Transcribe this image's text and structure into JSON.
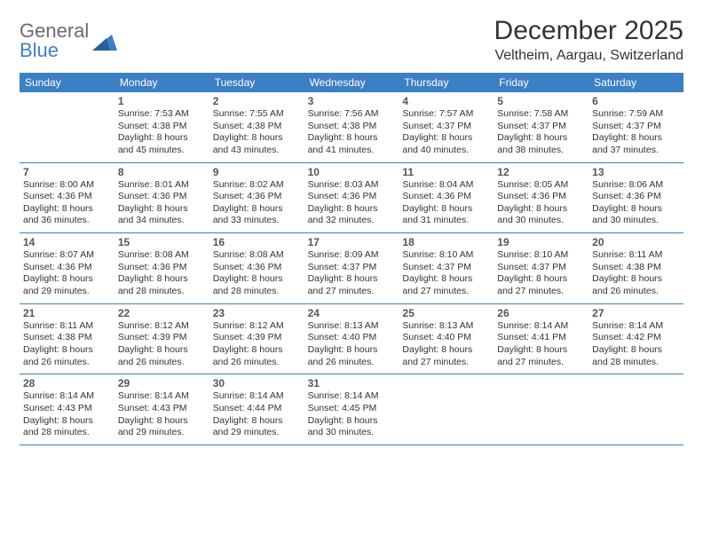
{
  "logo": {
    "word1": "General",
    "word2": "Blue"
  },
  "title": "December 2025",
  "location": "Veltheim, Aargau, Switzerland",
  "colors": {
    "brand_blue": "#3b7fc4",
    "header_text": "#ffffff",
    "body_text": "#333333",
    "logo_gray": "#6b6b6b",
    "background": "#ffffff"
  },
  "typography": {
    "title_fontsize": 30,
    "location_fontsize": 16,
    "dayheader_fontsize": 12,
    "daynum_fontsize": 12,
    "cell_fontsize": 10.5
  },
  "day_headers": [
    "Sunday",
    "Monday",
    "Tuesday",
    "Wednesday",
    "Thursday",
    "Friday",
    "Saturday"
  ],
  "weeks": [
    [
      {
        "n": "",
        "sunrise": "",
        "sunset": "",
        "daylight": ""
      },
      {
        "n": "1",
        "sunrise": "Sunrise: 7:53 AM",
        "sunset": "Sunset: 4:38 PM",
        "daylight": "Daylight: 8 hours and 45 minutes."
      },
      {
        "n": "2",
        "sunrise": "Sunrise: 7:55 AM",
        "sunset": "Sunset: 4:38 PM",
        "daylight": "Daylight: 8 hours and 43 minutes."
      },
      {
        "n": "3",
        "sunrise": "Sunrise: 7:56 AM",
        "sunset": "Sunset: 4:38 PM",
        "daylight": "Daylight: 8 hours and 41 minutes."
      },
      {
        "n": "4",
        "sunrise": "Sunrise: 7:57 AM",
        "sunset": "Sunset: 4:37 PM",
        "daylight": "Daylight: 8 hours and 40 minutes."
      },
      {
        "n": "5",
        "sunrise": "Sunrise: 7:58 AM",
        "sunset": "Sunset: 4:37 PM",
        "daylight": "Daylight: 8 hours and 38 minutes."
      },
      {
        "n": "6",
        "sunrise": "Sunrise: 7:59 AM",
        "sunset": "Sunset: 4:37 PM",
        "daylight": "Daylight: 8 hours and 37 minutes."
      }
    ],
    [
      {
        "n": "7",
        "sunrise": "Sunrise: 8:00 AM",
        "sunset": "Sunset: 4:36 PM",
        "daylight": "Daylight: 8 hours and 36 minutes."
      },
      {
        "n": "8",
        "sunrise": "Sunrise: 8:01 AM",
        "sunset": "Sunset: 4:36 PM",
        "daylight": "Daylight: 8 hours and 34 minutes."
      },
      {
        "n": "9",
        "sunrise": "Sunrise: 8:02 AM",
        "sunset": "Sunset: 4:36 PM",
        "daylight": "Daylight: 8 hours and 33 minutes."
      },
      {
        "n": "10",
        "sunrise": "Sunrise: 8:03 AM",
        "sunset": "Sunset: 4:36 PM",
        "daylight": "Daylight: 8 hours and 32 minutes."
      },
      {
        "n": "11",
        "sunrise": "Sunrise: 8:04 AM",
        "sunset": "Sunset: 4:36 PM",
        "daylight": "Daylight: 8 hours and 31 minutes."
      },
      {
        "n": "12",
        "sunrise": "Sunrise: 8:05 AM",
        "sunset": "Sunset: 4:36 PM",
        "daylight": "Daylight: 8 hours and 30 minutes."
      },
      {
        "n": "13",
        "sunrise": "Sunrise: 8:06 AM",
        "sunset": "Sunset: 4:36 PM",
        "daylight": "Daylight: 8 hours and 30 minutes."
      }
    ],
    [
      {
        "n": "14",
        "sunrise": "Sunrise: 8:07 AM",
        "sunset": "Sunset: 4:36 PM",
        "daylight": "Daylight: 8 hours and 29 minutes."
      },
      {
        "n": "15",
        "sunrise": "Sunrise: 8:08 AM",
        "sunset": "Sunset: 4:36 PM",
        "daylight": "Daylight: 8 hours and 28 minutes."
      },
      {
        "n": "16",
        "sunrise": "Sunrise: 8:08 AM",
        "sunset": "Sunset: 4:36 PM",
        "daylight": "Daylight: 8 hours and 28 minutes."
      },
      {
        "n": "17",
        "sunrise": "Sunrise: 8:09 AM",
        "sunset": "Sunset: 4:37 PM",
        "daylight": "Daylight: 8 hours and 27 minutes."
      },
      {
        "n": "18",
        "sunrise": "Sunrise: 8:10 AM",
        "sunset": "Sunset: 4:37 PM",
        "daylight": "Daylight: 8 hours and 27 minutes."
      },
      {
        "n": "19",
        "sunrise": "Sunrise: 8:10 AM",
        "sunset": "Sunset: 4:37 PM",
        "daylight": "Daylight: 8 hours and 27 minutes."
      },
      {
        "n": "20",
        "sunrise": "Sunrise: 8:11 AM",
        "sunset": "Sunset: 4:38 PM",
        "daylight": "Daylight: 8 hours and 26 minutes."
      }
    ],
    [
      {
        "n": "21",
        "sunrise": "Sunrise: 8:11 AM",
        "sunset": "Sunset: 4:38 PM",
        "daylight": "Daylight: 8 hours and 26 minutes."
      },
      {
        "n": "22",
        "sunrise": "Sunrise: 8:12 AM",
        "sunset": "Sunset: 4:39 PM",
        "daylight": "Daylight: 8 hours and 26 minutes."
      },
      {
        "n": "23",
        "sunrise": "Sunrise: 8:12 AM",
        "sunset": "Sunset: 4:39 PM",
        "daylight": "Daylight: 8 hours and 26 minutes."
      },
      {
        "n": "24",
        "sunrise": "Sunrise: 8:13 AM",
        "sunset": "Sunset: 4:40 PM",
        "daylight": "Daylight: 8 hours and 26 minutes."
      },
      {
        "n": "25",
        "sunrise": "Sunrise: 8:13 AM",
        "sunset": "Sunset: 4:40 PM",
        "daylight": "Daylight: 8 hours and 27 minutes."
      },
      {
        "n": "26",
        "sunrise": "Sunrise: 8:14 AM",
        "sunset": "Sunset: 4:41 PM",
        "daylight": "Daylight: 8 hours and 27 minutes."
      },
      {
        "n": "27",
        "sunrise": "Sunrise: 8:14 AM",
        "sunset": "Sunset: 4:42 PM",
        "daylight": "Daylight: 8 hours and 28 minutes."
      }
    ],
    [
      {
        "n": "28",
        "sunrise": "Sunrise: 8:14 AM",
        "sunset": "Sunset: 4:43 PM",
        "daylight": "Daylight: 8 hours and 28 minutes."
      },
      {
        "n": "29",
        "sunrise": "Sunrise: 8:14 AM",
        "sunset": "Sunset: 4:43 PM",
        "daylight": "Daylight: 8 hours and 29 minutes."
      },
      {
        "n": "30",
        "sunrise": "Sunrise: 8:14 AM",
        "sunset": "Sunset: 4:44 PM",
        "daylight": "Daylight: 8 hours and 29 minutes."
      },
      {
        "n": "31",
        "sunrise": "Sunrise: 8:14 AM",
        "sunset": "Sunset: 4:45 PM",
        "daylight": "Daylight: 8 hours and 30 minutes."
      },
      {
        "n": "",
        "sunrise": "",
        "sunset": "",
        "daylight": ""
      },
      {
        "n": "",
        "sunrise": "",
        "sunset": "",
        "daylight": ""
      },
      {
        "n": "",
        "sunrise": "",
        "sunset": "",
        "daylight": ""
      }
    ]
  ]
}
